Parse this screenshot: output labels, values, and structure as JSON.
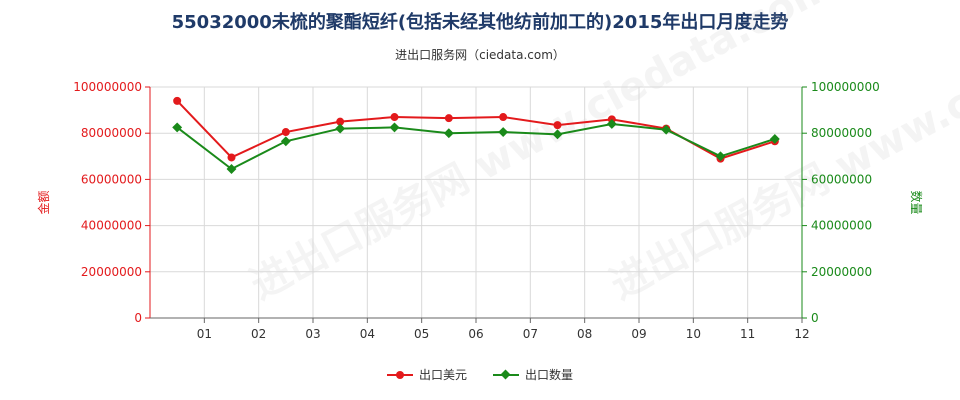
{
  "title": "55032000未梳的聚酯短纤(包括未经其他纺前加工的)2015年出口月度走势",
  "subtitle": "进出口服务网（ciedata.com）",
  "watermark": "进出口服务网 www.ciedata.com",
  "colors": {
    "usd": "#e31a1c",
    "qty": "#1a8a1a",
    "grid": "#d9d9d9",
    "axis": "#666666"
  },
  "chart_data": {
    "type": "line",
    "categories": [
      "01",
      "02",
      "03",
      "04",
      "05",
      "06",
      "07",
      "08",
      "09",
      "10",
      "11",
      "12"
    ],
    "series": [
      {
        "name": "出口美元",
        "axis": "left",
        "color": "#e31a1c",
        "marker": "circle",
        "values": [
          94000000,
          69500000,
          80500000,
          85000000,
          87000000,
          86500000,
          87000000,
          83500000,
          86000000,
          82000000,
          69000000,
          76500000
        ]
      },
      {
        "name": "出口数量",
        "axis": "right",
        "color": "#1a8a1a",
        "marker": "diamond",
        "values": [
          82500000,
          64500000,
          76500000,
          82000000,
          82500000,
          80000000,
          80500000,
          79500000,
          84000000,
          81500000,
          70000000,
          77500000
        ]
      }
    ],
    "ylabel_left": "金额",
    "ylabel_right": "数量",
    "ylim_left": [
      0,
      100000000
    ],
    "ylim_right": [
      0,
      100000000
    ],
    "yticks": [
      "0",
      "20000000",
      "40000000",
      "60000000",
      "80000000",
      "100000000"
    ],
    "grid": true,
    "legend": "bottom-center"
  }
}
